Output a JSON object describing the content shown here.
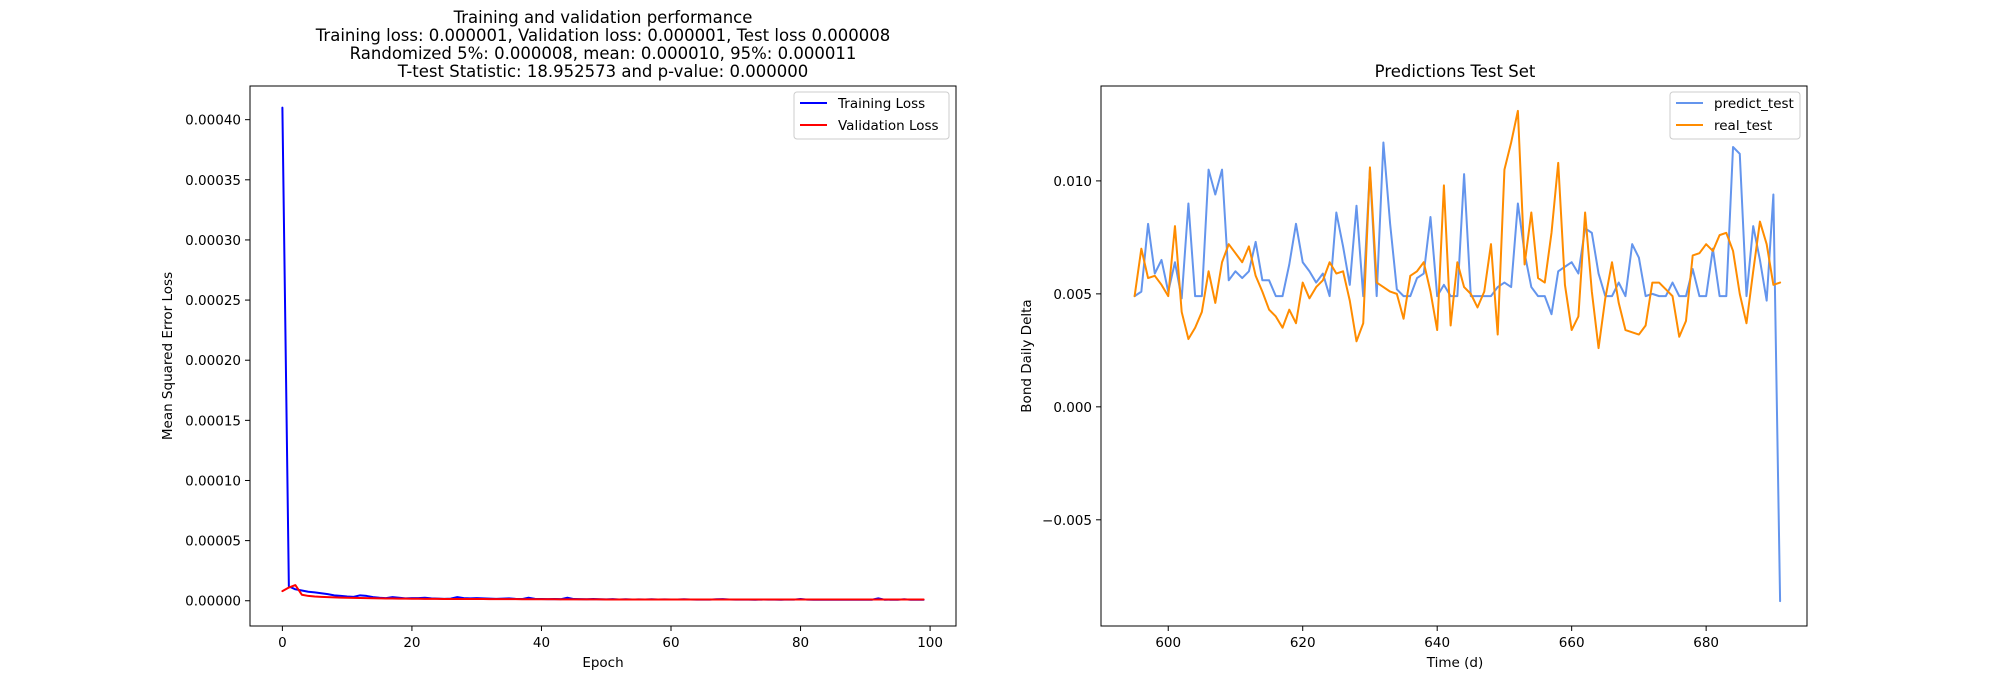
{
  "figure": {
    "title_lines": [
      "Training and validation performance",
      "Training loss: 0.000001, Validation loss: 0.000001, Test loss 0.000008",
      "Randomized 5%: 0.000008, mean: 0.000010, 95%: 0.000011",
      "T-test Statistic: 18.952573 and p-value: 0.000000"
    ]
  },
  "colors": {
    "training_loss": "#0000ff",
    "validation_loss": "#ff0000",
    "predict_test": "#6495ed",
    "real_test": "#ff8c00"
  },
  "chart_data": [
    {
      "type": "line",
      "title": "",
      "xlabel": "Epoch",
      "ylabel": "Mean Squared Error Loss",
      "xlim": [
        -5,
        104
      ],
      "ylim": [
        -2.1e-05,
        0.000428
      ],
      "xticks": [
        0,
        20,
        40,
        60,
        80,
        100
      ],
      "xtick_labels": [
        "0",
        "20",
        "40",
        "60",
        "80",
        "100"
      ],
      "yticks": [
        0,
        5e-05,
        0.0001,
        0.00015,
        0.0002,
        0.00025,
        0.0003,
        0.00035,
        0.0004
      ],
      "ytick_labels": [
        "0.00000",
        "0.00005",
        "0.00010",
        "0.00015",
        "0.00020",
        "0.00025",
        "0.00030",
        "0.00035",
        "0.00040"
      ],
      "grid": false,
      "legend_position": "upper right",
      "series": [
        {
          "name": "Training Loss",
          "color": "#0000ff",
          "x": [
            0,
            1,
            2,
            3,
            4,
            5,
            6,
            7,
            8,
            9,
            10,
            11,
            12,
            13,
            14,
            15,
            16,
            17,
            18,
            19,
            20,
            21,
            22,
            23,
            24,
            25,
            26,
            27,
            28,
            29,
            30,
            31,
            32,
            33,
            34,
            35,
            36,
            37,
            38,
            39,
            40,
            41,
            42,
            43,
            44,
            45,
            46,
            47,
            48,
            49,
            50,
            51,
            52,
            53,
            54,
            55,
            56,
            57,
            58,
            59,
            60,
            61,
            62,
            63,
            64,
            65,
            66,
            67,
            68,
            69,
            70,
            71,
            72,
            73,
            74,
            75,
            76,
            77,
            78,
            79,
            80,
            81,
            82,
            83,
            84,
            85,
            86,
            87,
            88,
            89,
            90,
            91,
            92,
            93,
            94,
            95,
            96,
            97,
            98,
            99
          ],
          "y": [
            0.00041,
            1.2e-05,
            9.5e-06,
            8.5e-06,
            7.5e-06,
            7e-06,
            6.2e-06,
            5.5e-06,
            4.5e-06,
            4e-06,
            3.5e-06,
            3.2e-06,
            4.5e-06,
            4e-06,
            3e-06,
            2.5e-06,
            2.2e-06,
            3e-06,
            2.5e-06,
            2e-06,
            2.2e-06,
            2.2e-06,
            2.5e-06,
            2e-06,
            1.8e-06,
            1.6e-06,
            1.8e-06,
            3e-06,
            2.2e-06,
            2e-06,
            2.2e-06,
            2e-06,
            1.8e-06,
            1.6e-06,
            1.8e-06,
            2e-06,
            1.6e-06,
            1.4e-06,
            2.5e-06,
            1.6e-06,
            1.4e-06,
            1.3e-06,
            1.5e-06,
            1.3e-06,
            2.5e-06,
            1.4e-06,
            1.3e-06,
            1.2e-06,
            1.4e-06,
            1.2e-06,
            1.1e-06,
            1.3e-06,
            1e-06,
            1.2e-06,
            1e-06,
            1.1e-06,
            1e-06,
            1.2e-06,
            1e-06,
            1.1e-06,
            1e-06,
            1e-06,
            1.2e-06,
            1e-06,
            9e-07,
            1e-06,
            9e-07,
            1.2e-06,
            1.3e-06,
            1e-06,
            9e-07,
            1e-06,
            9e-07,
            8e-07,
            1e-06,
            9e-07,
            9e-07,
            8e-07,
            1e-06,
            9e-07,
            1.5e-06,
            9e-07,
            8e-07,
            9e-07,
            8e-07,
            9e-07,
            8e-07,
            8e-07,
            9e-07,
            8e-07,
            8e-07,
            8e-07,
            2e-06,
            8e-07,
            9e-07,
            8e-07,
            1.2e-06,
            8e-07,
            8e-07,
            8e-07
          ]
        },
        {
          "name": "Validation Loss",
          "color": "#ff0000",
          "x": [
            0,
            1,
            2,
            3,
            4,
            5,
            6,
            7,
            8,
            9,
            10,
            11,
            12,
            13,
            14,
            15,
            16,
            17,
            18,
            19,
            20,
            21,
            22,
            23,
            24,
            25,
            26,
            27,
            28,
            29,
            30,
            31,
            32,
            33,
            34,
            35,
            36,
            37,
            38,
            39,
            40,
            41,
            42,
            43,
            44,
            45,
            46,
            47,
            48,
            49,
            50,
            51,
            52,
            53,
            54,
            55,
            56,
            57,
            58,
            59,
            60,
            61,
            62,
            63,
            64,
            65,
            66,
            67,
            68,
            69,
            70,
            71,
            72,
            73,
            74,
            75,
            76,
            77,
            78,
            79,
            80,
            81,
            82,
            83,
            84,
            85,
            86,
            87,
            88,
            89,
            90,
            91,
            92,
            93,
            94,
            95,
            96,
            97,
            98,
            99
          ],
          "y": [
            8e-06,
            1.1e-05,
            1.3e-05,
            5e-06,
            4e-06,
            3.5e-06,
            3.2e-06,
            3e-06,
            2.8e-06,
            2.6e-06,
            2.5e-06,
            2.4e-06,
            2.3e-06,
            2.2e-06,
            2.1e-06,
            2e-06,
            1.9e-06,
            1.9e-06,
            1.8e-06,
            1.8e-06,
            1.7e-06,
            1.7e-06,
            1.6e-06,
            1.6e-06,
            1.6e-06,
            1.5e-06,
            1.5e-06,
            1.5e-06,
            1.4e-06,
            1.4e-06,
            1.4e-06,
            1.4e-06,
            1.3e-06,
            1.3e-06,
            1.3e-06,
            1.3e-06,
            1.3e-06,
            1.2e-06,
            1.2e-06,
            1.2e-06,
            1.2e-06,
            1.2e-06,
            1.2e-06,
            1.1e-06,
            1.1e-06,
            1.1e-06,
            1.1e-06,
            1.1e-06,
            1.1e-06,
            1.1e-06,
            1e-06,
            1e-06,
            1e-06,
            1e-06,
            1e-06,
            1e-06,
            1e-06,
            1e-06,
            1e-06,
            1e-06,
            1e-06,
            1e-06,
            1e-06,
            1e-06,
            1e-06,
            1e-06,
            1e-06,
            1e-06,
            1e-06,
            1e-06,
            1e-06,
            1e-06,
            1e-06,
            1e-06,
            1e-06,
            1e-06,
            1e-06,
            1e-06,
            1e-06,
            1e-06,
            1e-06,
            1e-06,
            1e-06,
            1e-06,
            1e-06,
            1e-06,
            1e-06,
            1e-06,
            1e-06,
            1e-06,
            1e-06,
            1e-06,
            1e-06,
            1e-06,
            1e-06,
            1e-06,
            1e-06,
            1e-06,
            1e-06,
            1e-06
          ]
        }
      ]
    },
    {
      "type": "line",
      "title": "Predictions Test Set",
      "xlabel": "Time (d)",
      "ylabel": "Bond Daily Delta",
      "xlim": [
        590,
        695
      ],
      "ylim": [
        -0.0097,
        0.0142
      ],
      "xticks": [
        600,
        620,
        640,
        660,
        680
      ],
      "xtick_labels": [
        "600",
        "620",
        "640",
        "660",
        "680"
      ],
      "yticks": [
        -0.005,
        0,
        0.005,
        0.01
      ],
      "ytick_labels": [
        "−0.005",
        "0.000",
        "0.005",
        "0.010"
      ],
      "grid": false,
      "legend_position": "upper right",
      "series": [
        {
          "name": "predict_test",
          "color": "#6495ed",
          "x": [
            595,
            596,
            597,
            598,
            599,
            600,
            601,
            602,
            603,
            604,
            605,
            606,
            607,
            608,
            609,
            610,
            611,
            612,
            613,
            614,
            615,
            616,
            617,
            618,
            619,
            620,
            621,
            622,
            623,
            624,
            625,
            626,
            627,
            628,
            629,
            630,
            631,
            632,
            633,
            634,
            635,
            636,
            637,
            638,
            639,
            640,
            641,
            642,
            643,
            644,
            645,
            646,
            647,
            648,
            649,
            650,
            651,
            652,
            653,
            654,
            655,
            656,
            657,
            658,
            659,
            660,
            661,
            662,
            663,
            664,
            665,
            666,
            667,
            668,
            669,
            670,
            671,
            672,
            673,
            674,
            675,
            676,
            677,
            678,
            679,
            680,
            681,
            682,
            683,
            684,
            685,
            686,
            687,
            688,
            689,
            690,
            691
          ],
          "y": [
            0.0049,
            0.0051,
            0.0081,
            0.0059,
            0.0065,
            0.0051,
            0.0064,
            0.0048,
            0.009,
            0.0049,
            0.0049,
            0.0105,
            0.0094,
            0.0105,
            0.0056,
            0.006,
            0.0057,
            0.006,
            0.0073,
            0.0056,
            0.0056,
            0.0049,
            0.0049,
            0.0063,
            0.0081,
            0.0064,
            0.006,
            0.0055,
            0.0059,
            0.0049,
            0.0086,
            0.0071,
            0.0054,
            0.0089,
            0.0049,
            0.0105,
            0.0049,
            0.0117,
            0.0081,
            0.0052,
            0.0049,
            0.0049,
            0.0057,
            0.0059,
            0.0084,
            0.0049,
            0.0054,
            0.0049,
            0.0049,
            0.0103,
            0.0049,
            0.0049,
            0.0049,
            0.0049,
            0.0053,
            0.0055,
            0.0053,
            0.009,
            0.0068,
            0.0053,
            0.0049,
            0.0049,
            0.0041,
            0.006,
            0.0062,
            0.0064,
            0.0059,
            0.0079,
            0.0077,
            0.0059,
            0.0049,
            0.0049,
            0.0055,
            0.0049,
            0.0072,
            0.0066,
            0.0049,
            0.005,
            0.0049,
            0.0049,
            0.0055,
            0.0049,
            0.0049,
            0.0061,
            0.0049,
            0.0049,
            0.007,
            0.0049,
            0.0049,
            0.0115,
            0.0112,
            0.0049,
            0.008,
            0.0065,
            0.0047,
            0.0094,
            -0.0086
          ]
        },
        {
          "name": "real_test",
          "color": "#ff8c00",
          "x": [
            595,
            596,
            597,
            598,
            599,
            600,
            601,
            602,
            603,
            604,
            605,
            606,
            607,
            608,
            609,
            610,
            611,
            612,
            613,
            614,
            615,
            616,
            617,
            618,
            619,
            620,
            621,
            622,
            623,
            624,
            625,
            626,
            627,
            628,
            629,
            630,
            631,
            632,
            633,
            634,
            635,
            636,
            637,
            638,
            639,
            640,
            641,
            642,
            643,
            644,
            645,
            646,
            647,
            648,
            649,
            650,
            651,
            652,
            653,
            654,
            655,
            656,
            657,
            658,
            659,
            660,
            661,
            662,
            663,
            664,
            665,
            666,
            667,
            668,
            669,
            670,
            671,
            672,
            673,
            674,
            675,
            676,
            677,
            678,
            679,
            680,
            681,
            682,
            683,
            684,
            685,
            686,
            687,
            688,
            689,
            690,
            691
          ],
          "y": [
            0.0049,
            0.007,
            0.0057,
            0.0058,
            0.0054,
            0.0049,
            0.008,
            0.0042,
            0.003,
            0.0035,
            0.0042,
            0.006,
            0.0046,
            0.0064,
            0.0072,
            0.0068,
            0.0064,
            0.0071,
            0.0058,
            0.0051,
            0.0043,
            0.004,
            0.0035,
            0.0043,
            0.0037,
            0.0055,
            0.0048,
            0.0053,
            0.0056,
            0.0064,
            0.0059,
            0.006,
            0.0047,
            0.0029,
            0.0037,
            0.0106,
            0.0055,
            0.0053,
            0.0051,
            0.005,
            0.0039,
            0.0058,
            0.006,
            0.0064,
            0.0051,
            0.0034,
            0.0098,
            0.0036,
            0.0064,
            0.0053,
            0.005,
            0.0044,
            0.0051,
            0.0072,
            0.0032,
            0.0105,
            0.0117,
            0.0131,
            0.0063,
            0.0086,
            0.0057,
            0.0055,
            0.0077,
            0.0108,
            0.0054,
            0.0034,
            0.004,
            0.0086,
            0.0051,
            0.0026,
            0.0048,
            0.0064,
            0.0046,
            0.0034,
            0.0033,
            0.0032,
            0.0036,
            0.0055,
            0.0055,
            0.0052,
            0.0049,
            0.0031,
            0.0038,
            0.0067,
            0.0068,
            0.0072,
            0.0069,
            0.0076,
            0.0077,
            0.0069,
            0.005,
            0.0037,
            0.006,
            0.0082,
            0.0072,
            0.0054,
            0.0055
          ]
        }
      ]
    }
  ]
}
